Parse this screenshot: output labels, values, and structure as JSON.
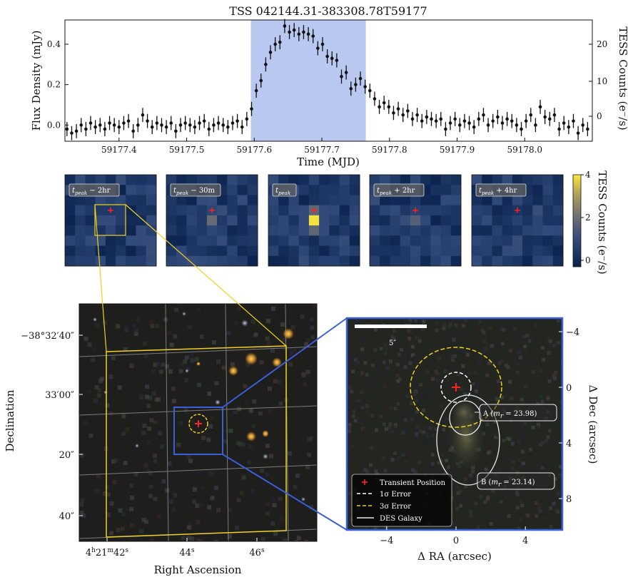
{
  "colors": {
    "band": "#b8c8f0",
    "yellow": "#f0d020",
    "blue": "#3b5fd9",
    "red": "#ff2020",
    "white_ellipse": "#e8e8e8"
  },
  "chart_data": [
    {
      "type": "scatter",
      "title": "TSS 042144.31-383308.78T59177",
      "xlabel": "Time (MJD)",
      "ylabel": "Flux Density (mJy)",
      "ylabel_right": "TESS Counts (e⁻/s)",
      "xlim": [
        59177.32,
        59178.1
      ],
      "ylim": [
        -0.08,
        0.52
      ],
      "xticks": [
        59177.4,
        59177.5,
        59177.6,
        59177.7,
        59177.8,
        59177.9,
        59178.0
      ],
      "xtick_labels": [
        "59177.4",
        "59177.5",
        "59177.6",
        "59177.7",
        "59177.8",
        "59177.9",
        "59178.0"
      ],
      "yticks": [
        0.0,
        0.2,
        0.4
      ],
      "ytick_labels": [
        "0.0",
        "0.2",
        "0.4"
      ],
      "yticks_right_labels": [
        "0",
        "10",
        "20"
      ],
      "highlight_x": [
        59177.595,
        59177.765
      ],
      "points": [
        [
          59177.323,
          -0.02
        ],
        [
          59177.33,
          -0.04
        ],
        [
          59177.337,
          -0.03
        ],
        [
          59177.344,
          0.0
        ],
        [
          59177.351,
          -0.02
        ],
        [
          59177.358,
          0.01
        ],
        [
          59177.365,
          -0.01
        ],
        [
          59177.372,
          0.0
        ],
        [
          59177.379,
          -0.02
        ],
        [
          59177.386,
          0.01
        ],
        [
          59177.393,
          0.0
        ],
        [
          59177.4,
          -0.01
        ],
        [
          59177.407,
          0.01
        ],
        [
          59177.414,
          0.02
        ],
        [
          59177.421,
          -0.03
        ],
        [
          59177.428,
          0.0
        ],
        [
          59177.435,
          0.05
        ],
        [
          59177.442,
          0.02
        ],
        [
          59177.449,
          -0.01
        ],
        [
          59177.456,
          0.01
        ],
        [
          59177.463,
          0.0
        ],
        [
          59177.47,
          -0.01
        ],
        [
          59177.477,
          0.01
        ],
        [
          59177.484,
          -0.03
        ],
        [
          59177.491,
          0.0
        ],
        [
          59177.498,
          0.01
        ],
        [
          59177.505,
          0.0
        ],
        [
          59177.512,
          -0.01
        ],
        [
          59177.519,
          0.01
        ],
        [
          59177.526,
          0.02
        ],
        [
          59177.533,
          -0.02
        ],
        [
          59177.54,
          0.0
        ],
        [
          59177.547,
          0.01
        ],
        [
          59177.554,
          0.0
        ],
        [
          59177.561,
          -0.01
        ],
        [
          59177.568,
          0.01
        ],
        [
          59177.575,
          0.02
        ],
        [
          59177.582,
          -0.01
        ],
        [
          59177.589,
          0.03
        ],
        [
          59177.596,
          0.08
        ],
        [
          59177.603,
          0.17
        ],
        [
          59177.61,
          0.22
        ],
        [
          59177.617,
          0.3
        ],
        [
          59177.624,
          0.36
        ],
        [
          59177.631,
          0.4
        ],
        [
          59177.638,
          0.41
        ],
        [
          59177.645,
          0.49
        ],
        [
          59177.652,
          0.46
        ],
        [
          59177.659,
          0.47
        ],
        [
          59177.666,
          0.45
        ],
        [
          59177.673,
          0.46
        ],
        [
          59177.68,
          0.45
        ],
        [
          59177.687,
          0.44
        ],
        [
          59177.694,
          0.38
        ],
        [
          59177.701,
          0.4
        ],
        [
          59177.708,
          0.34
        ],
        [
          59177.715,
          0.33
        ],
        [
          59177.722,
          0.32
        ],
        [
          59177.729,
          0.24
        ],
        [
          59177.736,
          0.26
        ],
        [
          59177.743,
          0.18
        ],
        [
          59177.75,
          0.2
        ],
        [
          59177.757,
          0.23
        ],
        [
          59177.764,
          0.19
        ],
        [
          59177.771,
          0.17
        ],
        [
          59177.778,
          0.13
        ],
        [
          59177.785,
          0.09
        ],
        [
          59177.792,
          0.11
        ],
        [
          59177.799,
          0.09
        ],
        [
          59177.806,
          0.06
        ],
        [
          59177.813,
          0.08
        ],
        [
          59177.82,
          0.05
        ],
        [
          59177.827,
          0.07
        ],
        [
          59177.834,
          0.03
        ],
        [
          59177.841,
          0.05
        ],
        [
          59177.848,
          0.02
        ],
        [
          59177.855,
          0.04
        ],
        [
          59177.862,
          0.03
        ],
        [
          59177.869,
          0.02
        ],
        [
          59177.876,
          0.03
        ],
        [
          59177.883,
          -0.02
        ],
        [
          59177.89,
          0.01
        ],
        [
          59177.897,
          0.03
        ],
        [
          59177.904,
          0.0
        ],
        [
          59177.911,
          0.02
        ],
        [
          59177.918,
          0.01
        ],
        [
          59177.925,
          -0.01
        ],
        [
          59177.932,
          0.03
        ],
        [
          59177.939,
          0.05
        ],
        [
          59177.946,
          0.0
        ],
        [
          59177.953,
          0.02
        ],
        [
          59177.96,
          0.04
        ],
        [
          59177.967,
          0.01
        ],
        [
          59177.974,
          0.03
        ],
        [
          59177.981,
          0.02
        ],
        [
          59177.988,
          0.0
        ],
        [
          59177.995,
          -0.02
        ],
        [
          59178.002,
          0.02
        ],
        [
          59178.009,
          0.05
        ],
        [
          59178.016,
          0.0
        ],
        [
          59178.023,
          0.09
        ],
        [
          59178.03,
          0.04
        ],
        [
          59178.037,
          0.03
        ],
        [
          59178.044,
          0.05
        ],
        [
          59178.051,
          -0.02
        ],
        [
          59178.058,
          0.01
        ],
        [
          59178.065,
          -0.01
        ],
        [
          59178.072,
          0.02
        ],
        [
          59178.079,
          -0.04
        ],
        [
          59178.086,
          0.0
        ],
        [
          59178.093,
          -0.02
        ]
      ],
      "error": 0.035
    },
    {
      "type": "heatmap",
      "colorbar_label": "TESS Counts (e⁻/s)",
      "colorbar_range": [
        -0.3,
        4
      ],
      "colorbar_ticks": [
        0,
        2,
        4
      ],
      "panels": [
        {
          "label": "t_peak − 2hr",
          "label_main": "t",
          "label_sub": "peak",
          "label_rest": " − 2hr",
          "peak": 1.0,
          "seed": 3
        },
        {
          "label": "t_peak − 30m",
          "label_main": "t",
          "label_sub": "peak",
          "label_rest": " − 30m",
          "peak": 1.9,
          "seed": 7
        },
        {
          "label": "t_peak",
          "label_main": "t",
          "label_sub": "peak",
          "label_rest": "",
          "peak": 3.9,
          "seed": 11
        },
        {
          "label": "t_peak + 2hr",
          "label_main": "t",
          "label_sub": "peak",
          "label_rest": " + 2hr",
          "peak": 1.6,
          "seed": 13
        },
        {
          "label": "t_peak + 4hr",
          "label_main": "t",
          "label_sub": "peak",
          "label_rest": " + 4hr",
          "peak": 0.7,
          "seed": 17
        }
      ]
    },
    {
      "type": "image",
      "xlabel": "Right Ascension",
      "ylabel": "Declination",
      "dec_ticks": [
        "−38°32′40″",
        "33′00″",
        "20″",
        "40″"
      ],
      "ra_ticks": [
        {
          "h": "4",
          "m": "21",
          "s": "42"
        },
        {
          "s": "44"
        },
        {
          "s": "46"
        }
      ]
    },
    {
      "type": "image",
      "xlabel": "Δ RA (arcsec)",
      "ylabel": "Δ Dec (arcsec)",
      "xticks": [
        -4,
        0,
        4
      ],
      "xtick_labels": [
        "−4",
        "0",
        "4"
      ],
      "yticks": [
        -4,
        0,
        4,
        8
      ],
      "ytick_labels": [
        "−4",
        "0",
        "4",
        "8"
      ],
      "scalebar": "5″",
      "annotations": [
        {
          "name": "A",
          "label": "A (m_r = 23.98)",
          "letter": "A",
          "mag": "23.98"
        },
        {
          "name": "B",
          "label": "B (m_r = 23.14)",
          "letter": "B",
          "mag": "23.14"
        }
      ],
      "legend": [
        {
          "label": "Transient Position",
          "marker": "cross"
        },
        {
          "label": "1σ Error",
          "marker": "dash-white"
        },
        {
          "label": "3σ Error",
          "marker": "dash-yellow"
        },
        {
          "label": "DES Galaxy",
          "marker": "line-white"
        }
      ]
    }
  ]
}
